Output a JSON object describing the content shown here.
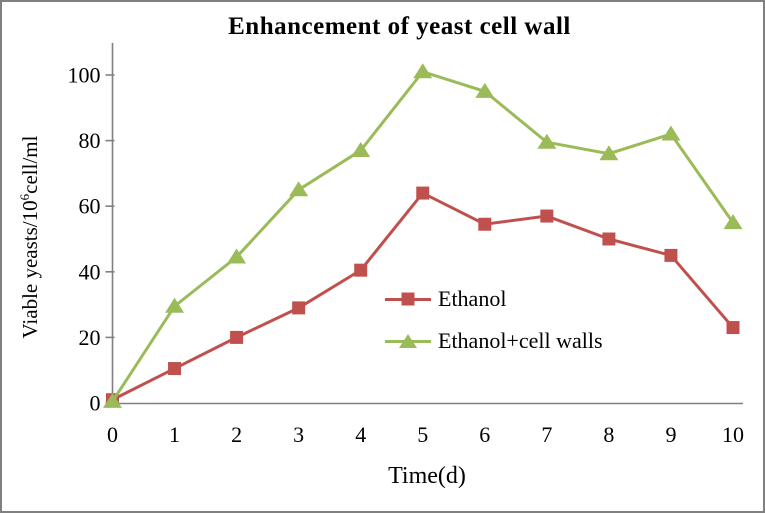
{
  "chart_data": {
    "type": "line",
    "title": "Enhancement of yeast cell wall",
    "xlabel": "Time(d)",
    "ylabel": "Viable yeasts/10⁶cell/ml",
    "ylabel_parts": {
      "base": "Viable yeasts/10",
      "sup": "6",
      "rest": "cell/ml"
    },
    "x": [
      0,
      1,
      2,
      3,
      4,
      5,
      6,
      7,
      8,
      9,
      10
    ],
    "y_ticks": [
      0,
      20,
      40,
      60,
      80,
      100
    ],
    "ylim": [
      0,
      110
    ],
    "grid": false,
    "legend_position": "inside-center-right",
    "series": [
      {
        "name": "Ethanol",
        "color": "#C0504D",
        "marker": "square",
        "values": [
          1,
          10.5,
          20,
          29,
          40.5,
          64,
          54.5,
          57,
          50,
          45,
          23
        ]
      },
      {
        "name": "Ethanol+cell walls",
        "color": "#9BBB59",
        "marker": "triangle",
        "values": [
          0.5,
          29.5,
          44.5,
          65,
          77,
          101,
          95,
          79.5,
          76,
          82,
          55
        ]
      }
    ],
    "axis_color": "#808080",
    "text_color": "#000000"
  },
  "frame": {
    "border_color": "#808080",
    "background": "#FFFFFF"
  }
}
